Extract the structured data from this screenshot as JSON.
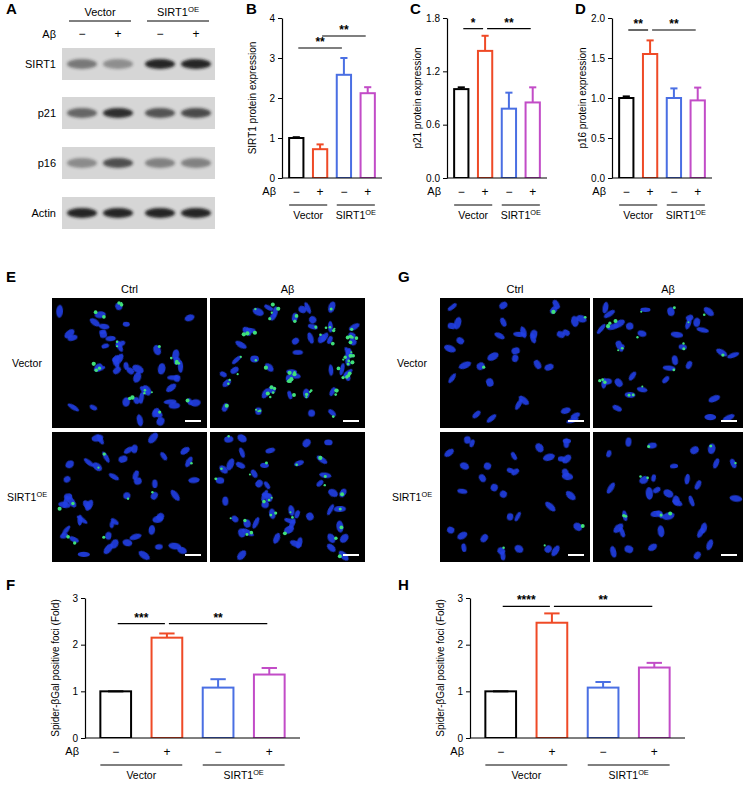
{
  "blot": {
    "panel": "A",
    "groups": [
      {
        "label": "Vector"
      },
      {
        "label": "SIRT1",
        "sup": "OE"
      }
    ],
    "treatment_label": "Aβ",
    "treatment": [
      "−",
      "+",
      "−",
      "+"
    ],
    "rows": [
      "SIRT1",
      "p21",
      "p16",
      "Actin"
    ]
  },
  "chart_data": [
    {
      "panel": "B",
      "type": "bar",
      "ylabel": "SIRT1 protein expression",
      "xlabel": "Aβ",
      "categories": [
        "−",
        "+",
        "−",
        "+"
      ],
      "groups": [
        {
          "label": "Vector"
        },
        {
          "label": "SIRT1",
          "sup": "OE"
        }
      ],
      "values": [
        1.0,
        0.72,
        2.58,
        2.12
      ],
      "errors": [
        0.02,
        0.12,
        0.42,
        0.15
      ],
      "colors": [
        "#000000",
        "#ef4a26",
        "#4a6fe3",
        "#c24cc7"
      ],
      "ylim": [
        0,
        4
      ],
      "yticks": [
        0,
        1,
        2,
        3,
        4
      ],
      "annotations": [
        {
          "text": "**",
          "from": 0,
          "to": 2,
          "y": 3.25
        },
        {
          "text": "**",
          "from": 1,
          "to": 3,
          "y": 3.55
        }
      ]
    },
    {
      "panel": "C",
      "type": "bar",
      "ylabel": "p21 protein expression",
      "xlabel": "Aβ",
      "categories": [
        "−",
        "+",
        "−",
        "+"
      ],
      "groups": [
        {
          "label": "Vector"
        },
        {
          "label": "SIRT1",
          "sup": "OE"
        }
      ],
      "values": [
        1.0,
        1.43,
        0.78,
        0.85
      ],
      "errors": [
        0.02,
        0.17,
        0.18,
        0.17
      ],
      "colors": [
        "#000000",
        "#ef4a26",
        "#4a6fe3",
        "#c24cc7"
      ],
      "ylim": [
        0,
        1.8
      ],
      "yticks": [
        {
          "value": 0,
          "label": "0.0"
        },
        0.6,
        1.2,
        1.8
      ],
      "annotations": [
        {
          "text": "*",
          "from": 0,
          "to": 1,
          "y": 1.68
        },
        {
          "text": "**",
          "from": 1,
          "to": 3,
          "y": 1.68
        }
      ]
    },
    {
      "panel": "D",
      "type": "bar",
      "ylabel": "p16 protein expression",
      "xlabel": "Aβ",
      "categories": [
        "−",
        "+",
        "−",
        "+"
      ],
      "groups": [
        {
          "label": "Vector"
        },
        {
          "label": "SIRT1",
          "sup": "OE"
        }
      ],
      "values": [
        1.0,
        1.55,
        1.0,
        0.97
      ],
      "errors": [
        0.02,
        0.17,
        0.12,
        0.16
      ],
      "colors": [
        "#000000",
        "#ef4a26",
        "#4a6fe3",
        "#c24cc7"
      ],
      "ylim": [
        0,
        2.0
      ],
      "yticks": [
        {
          "value": 0,
          "label": "0.0"
        },
        0.5,
        {
          "value": 1,
          "label": "1.0"
        },
        1.5,
        {
          "value": 2,
          "label": "2.0"
        }
      ],
      "annotations": [
        {
          "text": "**",
          "from": 0,
          "to": 1,
          "y": 1.85
        },
        {
          "text": "**",
          "from": 1,
          "to": 3,
          "y": 1.85
        }
      ]
    },
    {
      "panel": "F",
      "type": "bar",
      "ylabel": "Spider-βGal positive foci (Fold)",
      "xlabel": "Aβ",
      "categories": [
        "−",
        "+",
        "−",
        "+"
      ],
      "groups": [
        {
          "label": "Vector"
        },
        {
          "label": "SIRT1",
          "sup": "OE"
        }
      ],
      "values": [
        1.0,
        2.15,
        1.08,
        1.36
      ],
      "errors": [
        0,
        0.09,
        0.18,
        0.14
      ],
      "colors": [
        "#000000",
        "#ef4a26",
        "#4a6fe3",
        "#c24cc7"
      ],
      "ylim": [
        0,
        3
      ],
      "yticks": [
        0,
        1,
        2,
        3
      ],
      "annotations": [
        {
          "text": "***",
          "from": 0,
          "to": 1,
          "y": 2.45
        },
        {
          "text": "**",
          "from": 1,
          "to": 3,
          "y": 2.45
        }
      ]
    },
    {
      "panel": "H",
      "type": "bar",
      "ylabel": "Spider-βGal positive foci (Fold)",
      "xlabel": "Aβ",
      "categories": [
        "−",
        "+",
        "−",
        "+"
      ],
      "groups": [
        {
          "label": "Vector"
        },
        {
          "label": "SIRT1",
          "sup": "OE"
        }
      ],
      "values": [
        1.0,
        2.47,
        1.08,
        1.51
      ],
      "errors": [
        0,
        0.2,
        0.12,
        0.1
      ],
      "colors": [
        "#000000",
        "#ef4a26",
        "#4a6fe3",
        "#c24cc7"
      ],
      "ylim": [
        0,
        3
      ],
      "yticks": [
        0,
        1,
        2,
        3
      ],
      "annotations": [
        {
          "text": "****",
          "from": 0,
          "to": 1,
          "y": 2.82
        },
        {
          "text": "**",
          "from": 1,
          "to": 3,
          "y": 2.82
        }
      ]
    }
  ],
  "images": [
    {
      "panel": "E",
      "columns": [
        "Ctrl",
        "Aβ"
      ],
      "rows": [
        {
          "label": "Vector"
        },
        {
          "label": "SIRT1",
          "sup": "OE"
        }
      ]
    },
    {
      "panel": "G",
      "columns": [
        "Ctrl",
        "Aβ"
      ],
      "rows": [
        {
          "label": "Vector"
        },
        {
          "label": "SIRT1",
          "sup": "OE"
        }
      ]
    }
  ]
}
